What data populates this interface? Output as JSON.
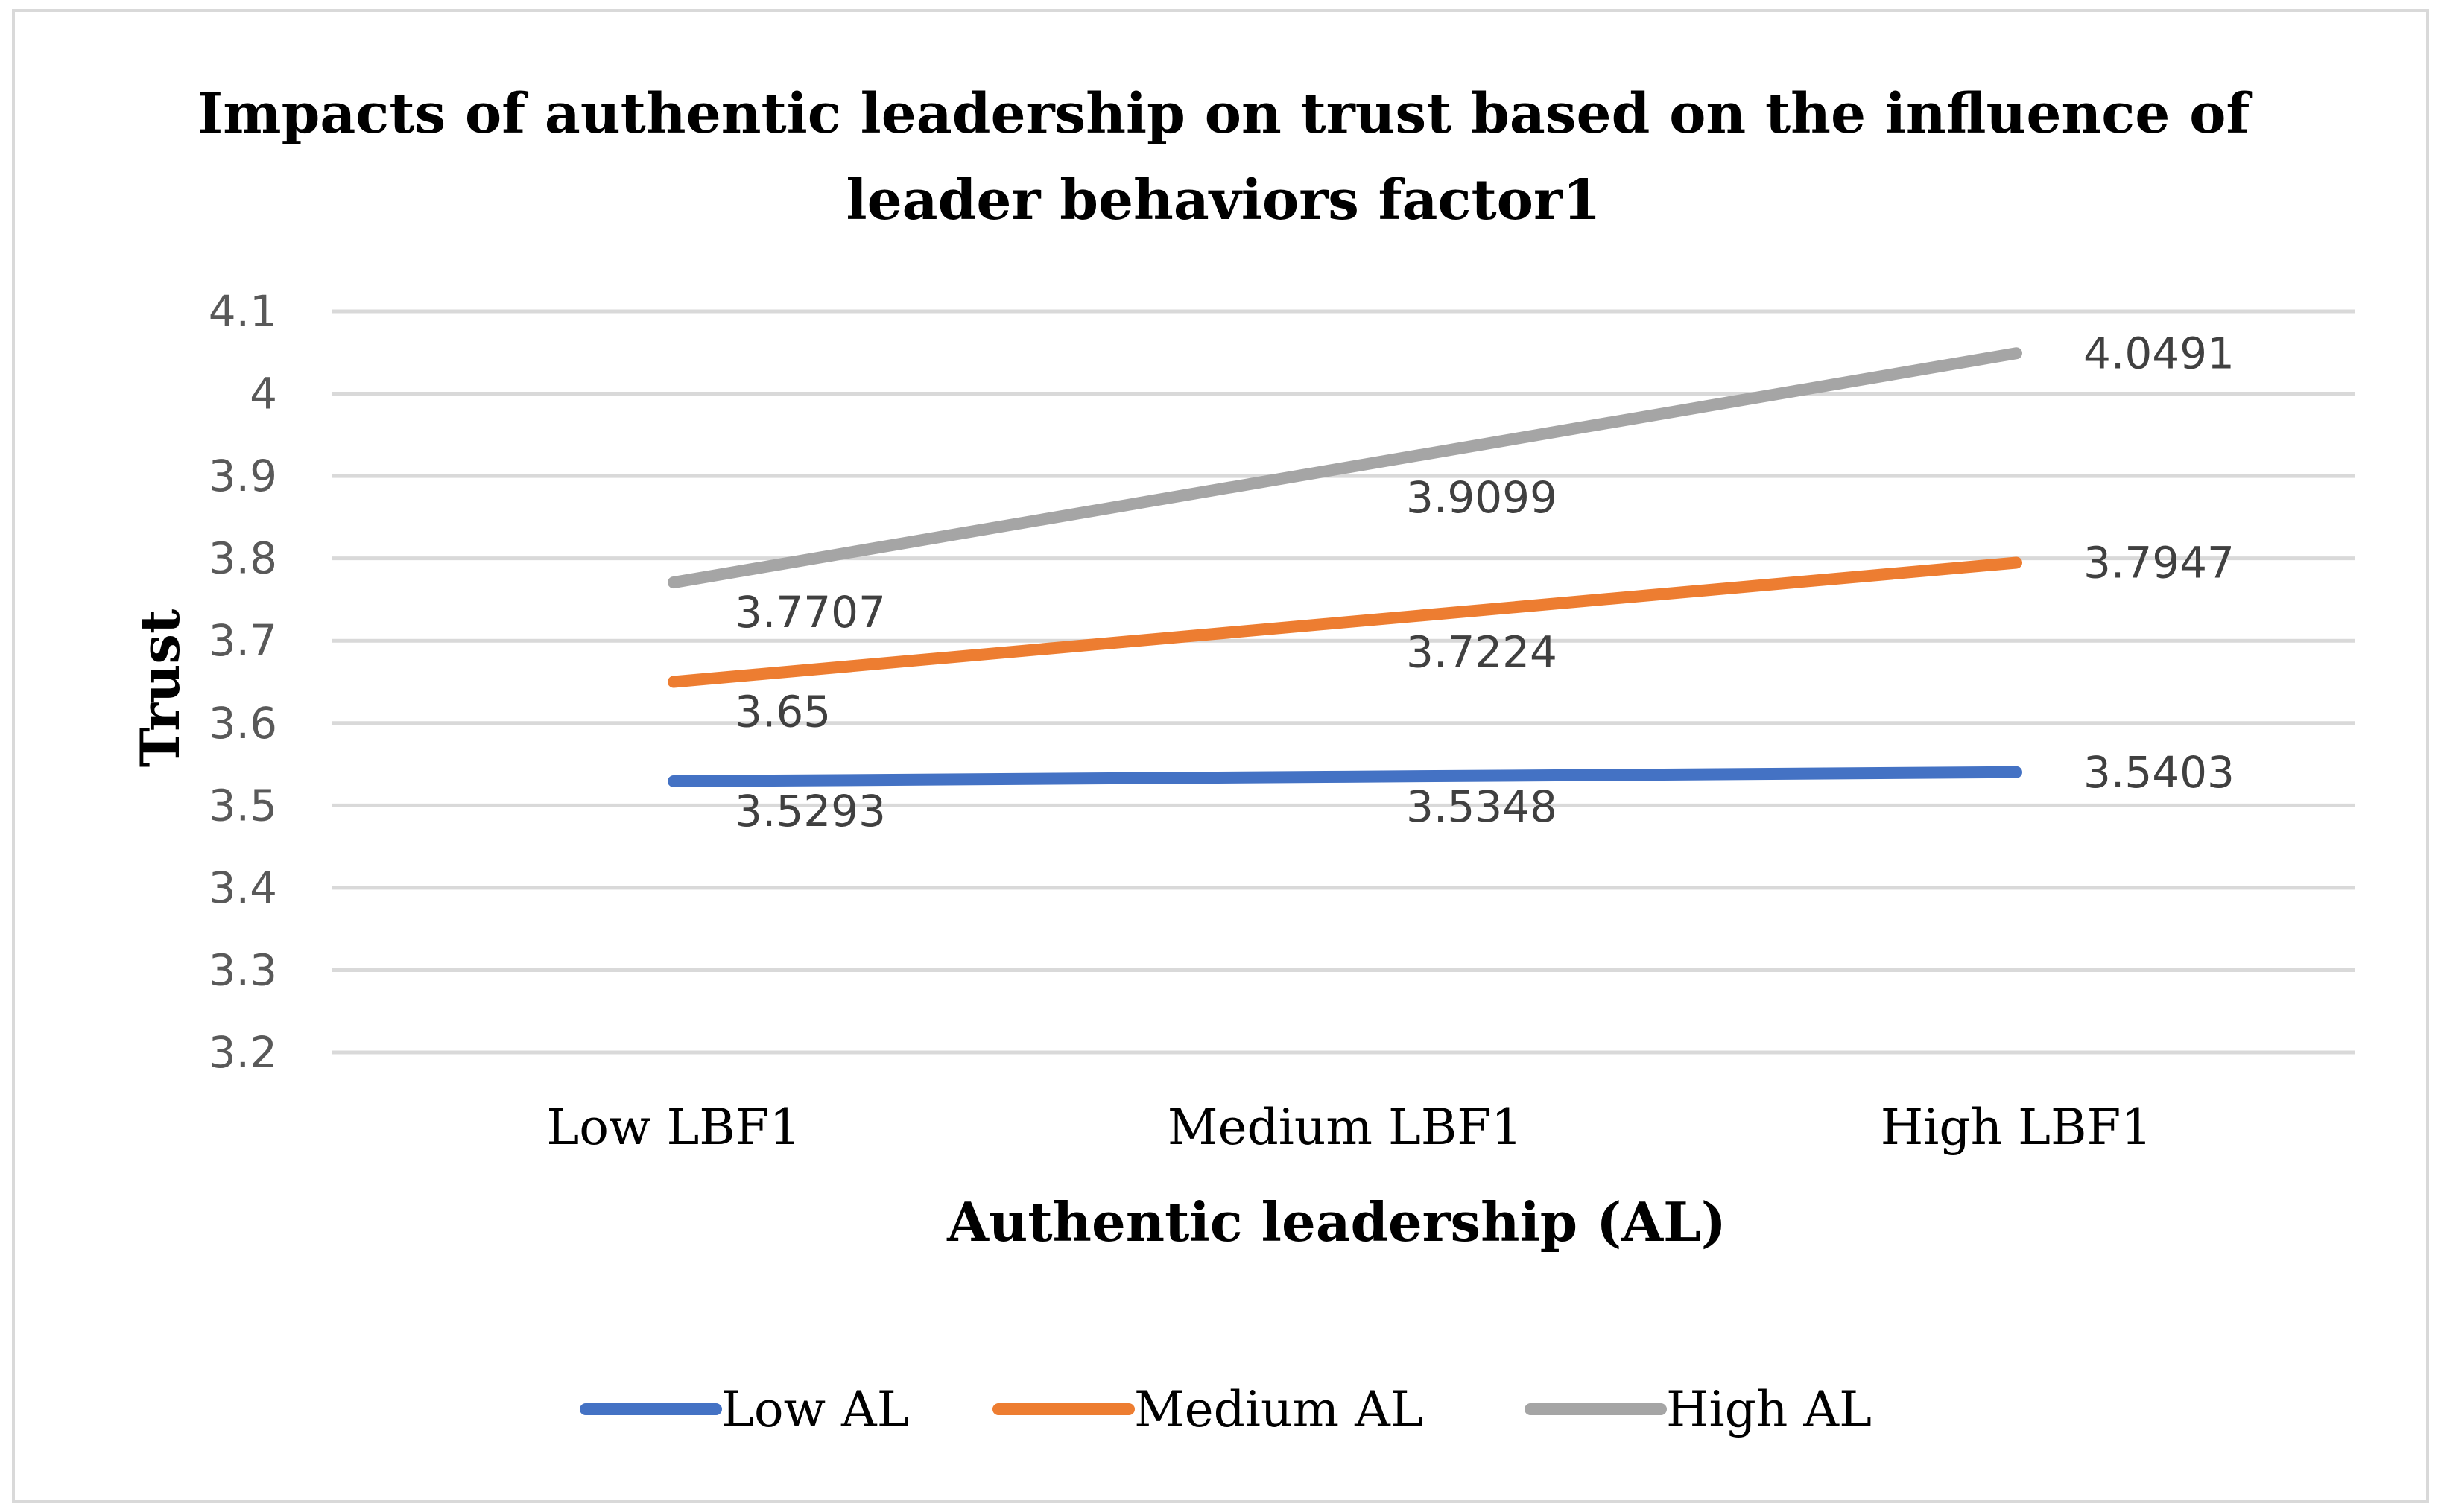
{
  "chart_data": {
    "type": "line",
    "title": "Impacts of authentic leadership on trust based on the influence of leader behaviors factor1",
    "title_lines": [
      "Impacts of authentic leadership on trust based on the influence of",
      "leader behaviors factor1"
    ],
    "xlabel": "Authentic leadership (AL)",
    "ylabel": "Trust",
    "categories": [
      "Low LBF1",
      "Medium LBF1",
      "High LBF1"
    ],
    "ylim": [
      3.2,
      4.1
    ],
    "yticks": [
      "3.2",
      "3.3",
      "3.4",
      "3.5",
      "3.6",
      "3.7",
      "3.8",
      "3.9",
      "4",
      "4.1"
    ],
    "grid": true,
    "legend_position": "bottom",
    "series": [
      {
        "name": "Low AL",
        "color": "#4472c4",
        "values": [
          3.5293,
          3.5348,
          3.5403
        ],
        "labels": [
          "3.5293",
          "3.5348",
          "3.5403"
        ]
      },
      {
        "name": "Medium AL",
        "color": "#ed7d31",
        "values": [
          3.65,
          3.7224,
          3.7947
        ],
        "labels": [
          "3.65",
          "3.7224",
          "3.7947"
        ]
      },
      {
        "name": "High AL",
        "color": "#a5a5a5",
        "values": [
          3.7707,
          3.9099,
          4.0491
        ],
        "labels": [
          "3.7707",
          "3.9099",
          "4.0491"
        ]
      }
    ]
  }
}
